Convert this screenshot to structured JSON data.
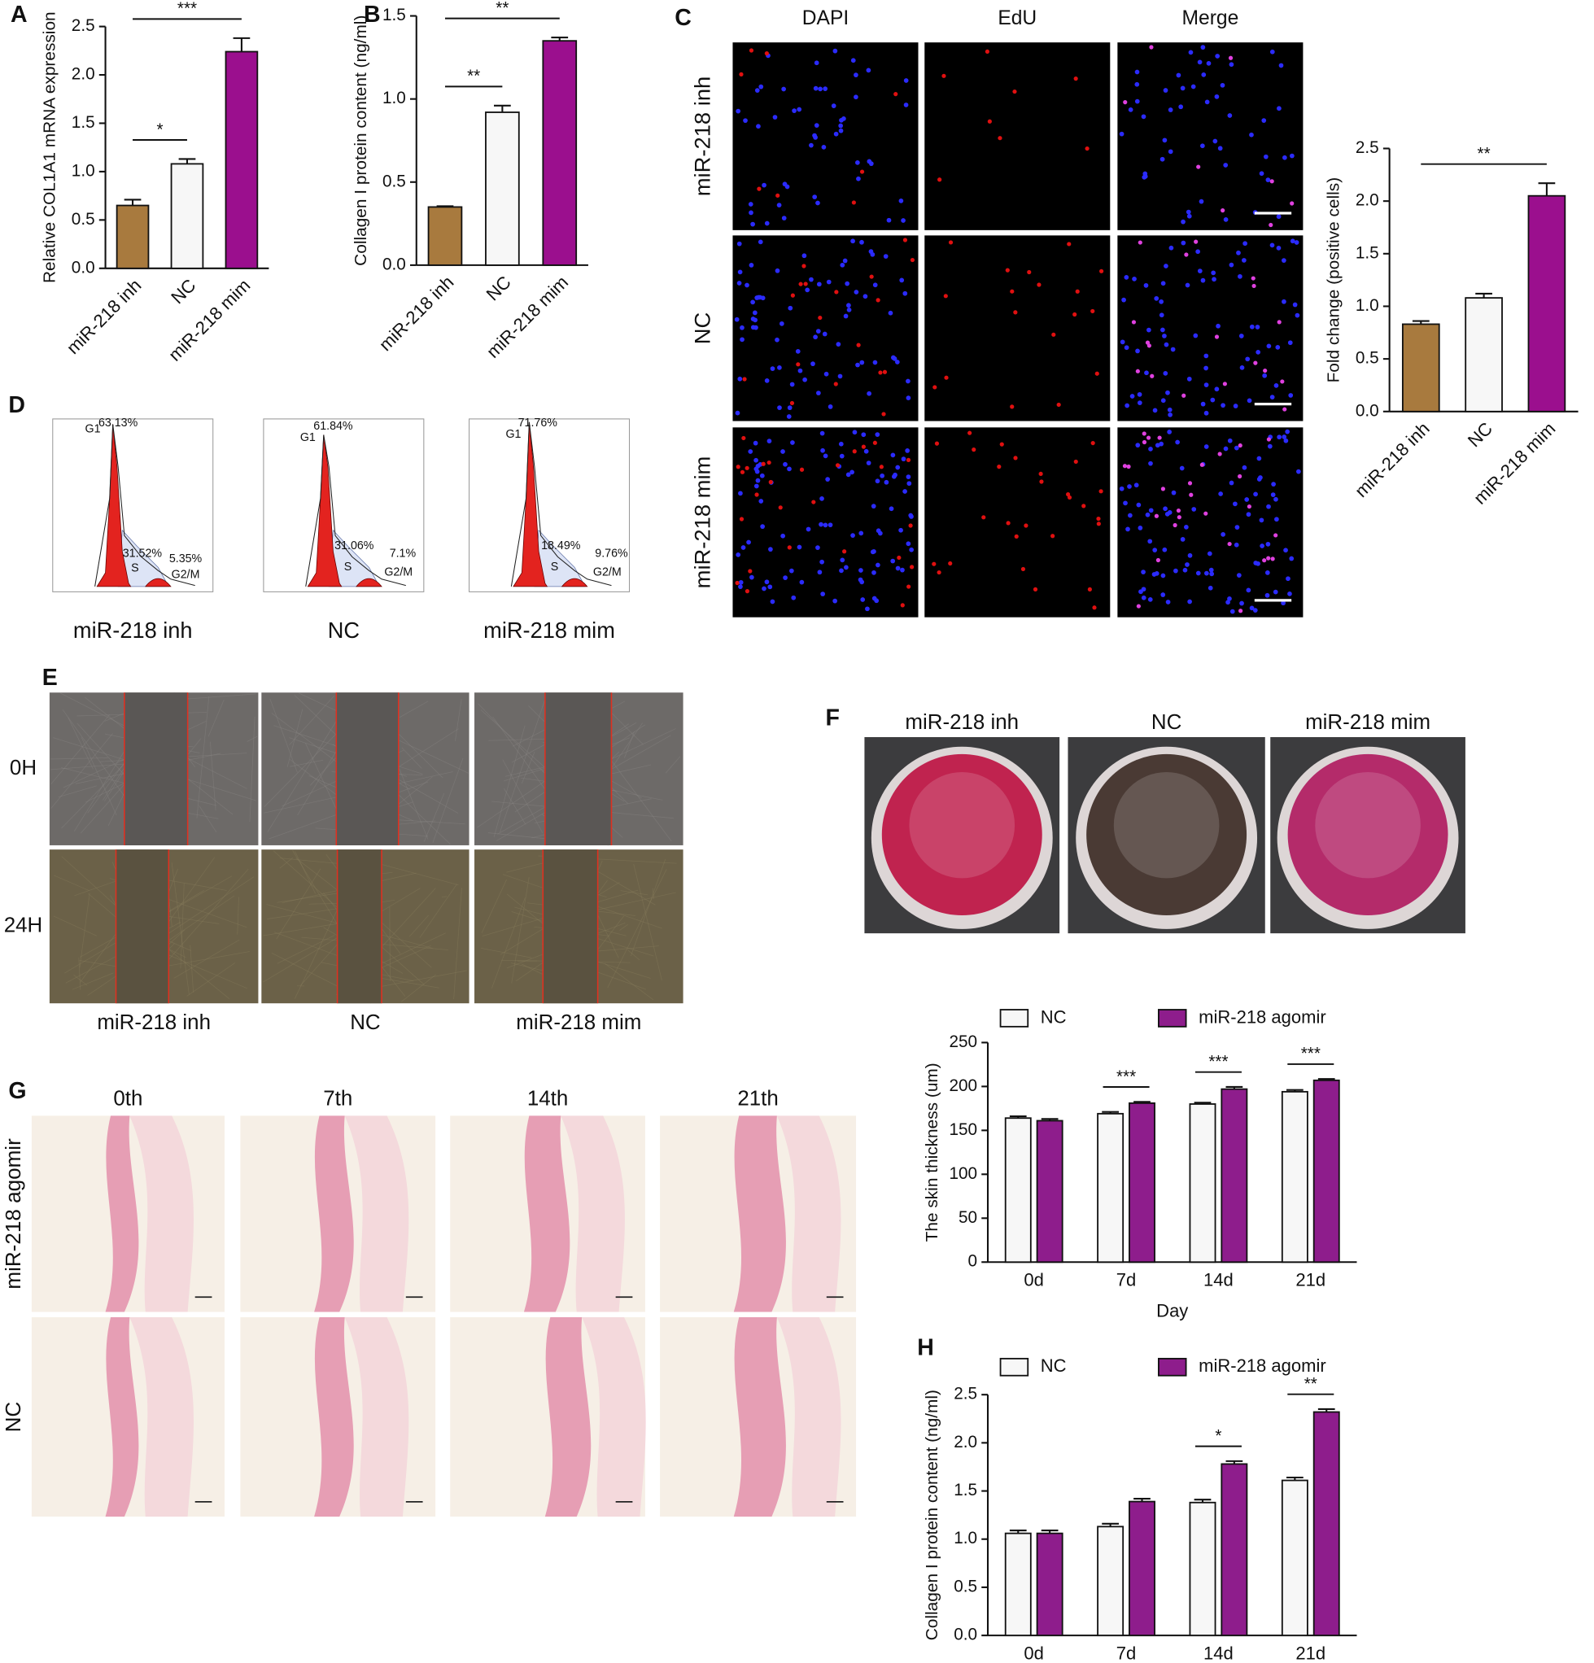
{
  "figure": {
    "panel_letters": [
      "A",
      "B",
      "C",
      "D",
      "E",
      "F",
      "G",
      "H"
    ],
    "C": {
      "columns": [
        "DAPI",
        "EdU",
        "Merge"
      ],
      "rows": [
        "miR-218 inh",
        "NC",
        "miR-218 mim"
      ]
    },
    "D": {
      "plots": [
        {
          "caption": "miR-218 inh",
          "labels": [
            "G1",
            "63.13%",
            "31.52%",
            "S",
            "5.35%",
            "G2/M"
          ]
        },
        {
          "caption": "NC",
          "labels": [
            "G1",
            "61.84%",
            "31.06%",
            "S",
            "7.1%",
            "G2/M"
          ]
        },
        {
          "caption": "miR-218 mim",
          "labels": [
            "G1",
            "71.76%",
            "18.49%",
            "S",
            "9.76%",
            "G2/M"
          ]
        }
      ]
    },
    "E": {
      "rows": [
        "0H",
        "24H"
      ],
      "columns": [
        "miR-218 inh",
        "NC",
        "miR-218 mim"
      ]
    },
    "F": {
      "columns": [
        "miR-218 inh",
        "NC",
        "miR-218 mim"
      ]
    },
    "G": {
      "columns": [
        "0th",
        "7th",
        "14th",
        "21th"
      ],
      "rows": [
        "miR-218 agomir",
        "NC"
      ]
    }
  },
  "chart_data": [
    {
      "type": "bar",
      "ylabel": "Relative COL1A1 mRNA expression",
      "categories": [
        "miR-218 inh",
        "NC",
        "miR-218 mim"
      ],
      "values": [
        0.65,
        1.08,
        2.24
      ],
      "errors": [
        0.06,
        0.05,
        0.14
      ],
      "colors": [
        "#a87a3e",
        "#f7f7f7",
        "#9b0f8e"
      ],
      "ylim": [
        0,
        2.5
      ],
      "yticks": [
        {
          "value": 0,
          "label": "0.0"
        },
        0.5,
        {
          "value": 1,
          "label": "1.0"
        },
        1.5,
        {
          "value": 2,
          "label": "2.0"
        },
        2.5
      ],
      "significance": [
        {
          "text": "*",
          "between": [
            0,
            1
          ]
        },
        {
          "text": "***",
          "between": [
            0,
            2
          ]
        }
      ]
    },
    {
      "type": "bar",
      "ylabel": "Collagen I protein content (ng/ml)",
      "categories": [
        "miR-218 inh",
        "NC",
        "miR-218 mim"
      ],
      "values": [
        0.35,
        0.92,
        1.35
      ],
      "errors": [
        0.005,
        0.04,
        0.02
      ],
      "colors": [
        "#a87a3e",
        "#f7f7f7",
        "#9b0f8e"
      ],
      "ylim": [
        0,
        1.5
      ],
      "yticks": [
        {
          "value": 0,
          "label": "0.0"
        },
        0.5,
        {
          "value": 1,
          "label": "1.0"
        },
        1.5
      ],
      "significance": [
        {
          "text": "**",
          "between": [
            0,
            1
          ]
        },
        {
          "text": "**",
          "between": [
            0,
            2
          ]
        }
      ]
    },
    {
      "type": "bar",
      "ylabel": "Fold change (positive cells)",
      "categories": [
        "miR-218 inh",
        "NC",
        "miR-218 mim"
      ],
      "values": [
        0.83,
        1.08,
        2.05
      ],
      "errors": [
        0.03,
        0.04,
        0.12
      ],
      "colors": [
        "#a87a3e",
        "#f7f7f7",
        "#9b0f8e"
      ],
      "ylim": [
        0,
        2.5
      ],
      "yticks": [
        {
          "value": 0,
          "label": "0.0"
        },
        0.5,
        {
          "value": 1,
          "label": "1.0"
        },
        1.5,
        {
          "value": 2,
          "label": "2.0"
        },
        2.5
      ],
      "significance": [
        {
          "text": "**",
          "between": [
            0,
            2
          ]
        }
      ]
    },
    {
      "type": "grouped_bar",
      "ylabel": "The skin thickness (um)",
      "xlabel": "Day",
      "categories": [
        "0d",
        "7d",
        "14d",
        "21d"
      ],
      "series": [
        {
          "name": "NC",
          "color": "#f7f7f7",
          "values": [
            164,
            169,
            180,
            194
          ],
          "errors": [
            2,
            2,
            1.5,
            2
          ]
        },
        {
          "name": "miR-218 agomir",
          "color": "#8e1d8c",
          "values": [
            161,
            181,
            197,
            207
          ],
          "errors": [
            2,
            1.5,
            2.5,
            1.5
          ]
        }
      ],
      "ylim": [
        0,
        250
      ],
      "yticks": [
        0,
        50,
        100,
        150,
        200,
        250
      ],
      "significance": [
        {
          "text": "***",
          "category": 1
        },
        {
          "text": "***",
          "category": 2
        },
        {
          "text": "***",
          "category": 3
        }
      ]
    },
    {
      "type": "grouped_bar",
      "ylabel": "Collagen I protein content (ng/ml)",
      "categories": [
        "0d",
        "7d",
        "14d",
        "21d"
      ],
      "series": [
        {
          "name": "NC",
          "color": "#f7f7f7",
          "values": [
            1.06,
            1.13,
            1.38,
            1.61
          ],
          "errors": [
            0.03,
            0.03,
            0.03,
            0.03
          ]
        },
        {
          "name": "miR-218 agomir",
          "color": "#8e1d8c",
          "values": [
            1.06,
            1.39,
            1.78,
            2.32
          ],
          "errors": [
            0.03,
            0.03,
            0.03,
            0.03
          ]
        }
      ],
      "ylim": [
        0,
        2.5
      ],
      "yticks": [
        {
          "value": 0,
          "label": "0.0"
        },
        0.5,
        {
          "value": 1,
          "label": "1.0"
        },
        1.5,
        {
          "value": 2,
          "label": "2.0"
        },
        2.5
      ],
      "significance": [
        {
          "text": "*",
          "category": 2
        },
        {
          "text": "**",
          "category": 3
        }
      ]
    }
  ]
}
